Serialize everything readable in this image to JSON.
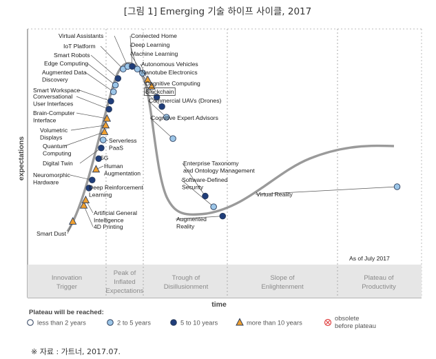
{
  "page_title": "[그림 1] Emerging 기술 하이프 사이클, 2017",
  "source_note": "※ 자료 : 가트너, 2017.07.",
  "chart_data": {
    "type": "scatter",
    "xlabel": "time",
    "ylabel": "expectations",
    "as_of": "As of July 2017",
    "phases": [
      "Innovation Trigger",
      "Peak of Inflated Expectations",
      "Trough of Disillusionment",
      "Slope of Enlightenment",
      "Plateau of Productivity"
    ],
    "legend_title": "Plateau will be reached:",
    "categories": [
      {
        "key": "lt2",
        "label": "less than 2 years",
        "color": "#ffffff",
        "shape": "circle"
      },
      {
        "key": "2to5",
        "label": "2 to 5 years",
        "color": "#9cc6e8",
        "shape": "circle"
      },
      {
        "key": "5to10",
        "label": "5 to 10 years",
        "color": "#1f3d7a",
        "shape": "circle"
      },
      {
        "key": "gt10",
        "label": "more than 10 years",
        "color": "#f0a030",
        "shape": "triangle"
      },
      {
        "key": "obs",
        "label": "obsolete before plateau",
        "color": "#e04040",
        "shape": "cross"
      }
    ],
    "points": [
      {
        "name": "Smart Dust",
        "x": 0.7,
        "y": 0.57,
        "cat": "gt10"
      },
      {
        "name": "4D Printing",
        "x": 0.87,
        "y": 0.69,
        "cat": "gt10"
      },
      {
        "name": "Artificial General Intelligence",
        "x": 0.9,
        "y": 0.73,
        "cat": "gt10"
      },
      {
        "name": "Deep Reinforcement Learning",
        "x": 0.95,
        "y": 0.82,
        "cat": "5to10"
      },
      {
        "name": "Neuromorphic Hardware",
        "x": 1.0,
        "y": 0.88,
        "cat": "5to10"
      },
      {
        "name": "Human Augmentation",
        "x": 1.06,
        "y": 0.96,
        "cat": "gt10"
      },
      {
        "name": "5G",
        "x": 1.1,
        "y": 1.04,
        "cat": "5to10"
      },
      {
        "name": "Digital Twin",
        "x": 1.14,
        "y": 1.12,
        "cat": "5to10"
      },
      {
        "name": "Serverless PaaS",
        "x": 1.17,
        "y": 1.18,
        "cat": "2to5"
      },
      {
        "name": "Quantum Computing",
        "x": 1.19,
        "y": 1.24,
        "cat": "gt10"
      },
      {
        "name": "Volumetric Displays",
        "x": 1.21,
        "y": 1.29,
        "cat": "gt10"
      },
      {
        "name": "Brain-Computer Interface",
        "x": 1.23,
        "y": 1.34,
        "cat": "gt10"
      },
      {
        "name": "Conversational User Interfaces",
        "x": 1.26,
        "y": 1.41,
        "cat": "5to10"
      },
      {
        "name": "Smart Workspace",
        "x": 1.29,
        "y": 1.47,
        "cat": "5to10"
      },
      {
        "name": "Augmented Data Discovery",
        "x": 1.33,
        "y": 1.54,
        "cat": "2to5"
      },
      {
        "name": "Edge Computing",
        "x": 1.36,
        "y": 1.59,
        "cat": "2to5"
      },
      {
        "name": "Smart Robots",
        "x": 1.4,
        "y": 1.64,
        "cat": "5to10"
      },
      {
        "name": "IoT Platform",
        "x": 1.48,
        "y": 1.71,
        "cat": "2to5"
      },
      {
        "name": "Virtual Assistants",
        "x": 1.55,
        "y": 1.73,
        "cat": "2to5"
      },
      {
        "name": "Connected Home",
        "x": 1.62,
        "y": 1.73,
        "cat": "5to10"
      },
      {
        "name": "Deep Learning",
        "x": 1.7,
        "y": 1.71,
        "cat": "2to5"
      },
      {
        "name": "Machine Learning",
        "x": 1.78,
        "y": 1.68,
        "cat": "2to5"
      },
      {
        "name": "Autonomous Vehicles",
        "x": 1.86,
        "y": 1.63,
        "cat": "gt10"
      },
      {
        "name": "Nanotube Electronics",
        "x": 1.92,
        "y": 1.58,
        "cat": "gt10"
      },
      {
        "name": "Cognitive Computing",
        "x": 2.0,
        "y": 1.5,
        "cat": "5to10"
      },
      {
        "name": "Blockchain",
        "x": 2.08,
        "y": 1.43,
        "cat": "5to10"
      },
      {
        "name": "Commercial UAVs (Drones)",
        "x": 2.15,
        "y": 1.35,
        "cat": "2to5"
      },
      {
        "name": "Cognitive Expert Advisors",
        "x": 2.25,
        "y": 1.19,
        "cat": "2to5"
      },
      {
        "name": "Enterprise Taxonomy and Ontology Management",
        "x": 2.75,
        "y": 0.76,
        "cat": "5to10"
      },
      {
        "name": "Software-Defined Security",
        "x": 2.88,
        "y": 0.68,
        "cat": "2to5"
      },
      {
        "name": "Augmented Reality",
        "x": 3.02,
        "y": 0.61,
        "cat": "5to10"
      },
      {
        "name": "Virtual Reality",
        "x": 5.72,
        "y": 0.83,
        "cat": "2to5"
      }
    ]
  }
}
